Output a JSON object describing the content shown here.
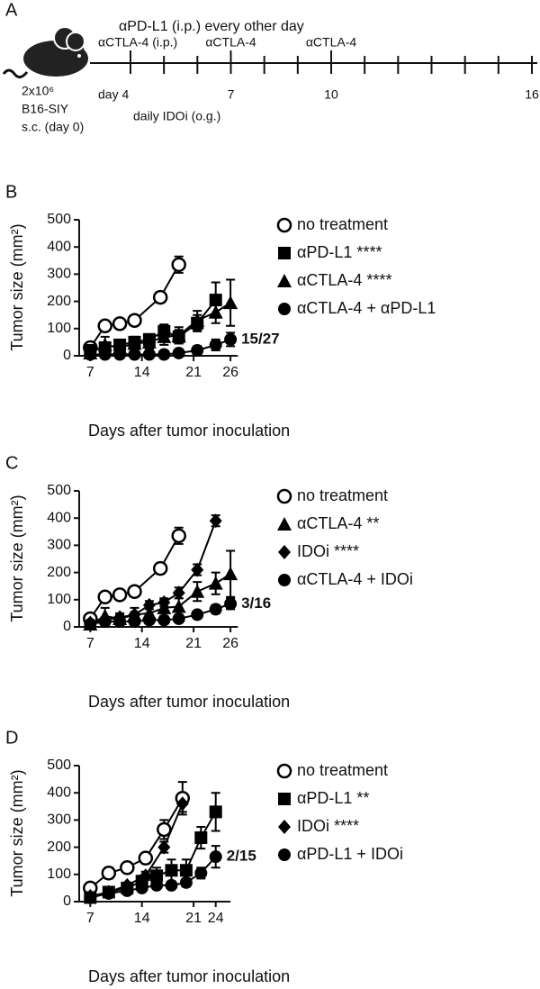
{
  "timeline": {
    "panel": "A",
    "header": "αPD-L1 (i.p.) every other day",
    "inoculation": [
      "2x10⁶",
      "B16-SIY",
      "s.c. (day 0)"
    ],
    "daily": "daily IDOi (o.g.)",
    "xlim": [
      4,
      16
    ],
    "xticks": [
      {
        "value": 4,
        "label": "day 4"
      },
      7,
      10,
      16
    ],
    "minor_ticks": [
      5,
      6,
      8,
      9,
      11,
      12,
      13,
      14,
      15
    ],
    "treatments": [
      {
        "day": 4,
        "label": "αCTLA-4 (i.p.)"
      },
      {
        "day": 7,
        "label": "αCTLA-4"
      },
      {
        "day": 10,
        "label": "αCTLA-4"
      }
    ]
  },
  "chart_data": [
    {
      "type": "line",
      "panel": "B",
      "ylabel": "Tumor size (mm²)",
      "xlabel": "Days after tumor inoculation",
      "xlim": [
        5.5,
        27
      ],
      "xticks": [
        7,
        14,
        21,
        26
      ],
      "ylim": [
        0,
        500
      ],
      "yticks": [
        0,
        100,
        200,
        300,
        400,
        500
      ],
      "annotation": "15/27",
      "series": [
        {
          "name": "no treatment",
          "marker": "circle-open",
          "color": "#000000",
          "x": [
            7,
            9,
            11,
            13,
            16.5,
            19
          ],
          "values": [
            30,
            110,
            118,
            130,
            215,
            335
          ],
          "errors": [
            10,
            10,
            10,
            10,
            20,
            30
          ]
        },
        {
          "name": "αPD-L1 ****",
          "marker": "square",
          "color": "#000000",
          "x": [
            7,
            9,
            11,
            13,
            15,
            17,
            19,
            21.5,
            24
          ],
          "values": [
            20,
            30,
            40,
            50,
            60,
            90,
            70,
            120,
            205
          ],
          "errors": [
            10,
            15,
            15,
            20,
            20,
            25,
            25,
            30,
            65
          ]
        },
        {
          "name": "αCTLA-4 ****",
          "marker": "triangle",
          "color": "#000000",
          "x": [
            7,
            9,
            11,
            13,
            15,
            17,
            19,
            21.5,
            24,
            26
          ],
          "values": [
            10,
            40,
            30,
            45,
            50,
            70,
            75,
            130,
            160,
            195
          ],
          "errors": [
            10,
            30,
            20,
            25,
            25,
            30,
            30,
            35,
            40,
            85
          ]
        },
        {
          "name": "αCTLA-4 + αPD-L1",
          "marker": "circle",
          "color": "#000000",
          "x": [
            7,
            9,
            11,
            13,
            15,
            17,
            19,
            21.5,
            24,
            26
          ],
          "values": [
            5,
            5,
            5,
            5,
            5,
            5,
            10,
            20,
            40,
            60
          ],
          "errors": [
            5,
            5,
            5,
            5,
            5,
            5,
            10,
            15,
            20,
            25
          ]
        }
      ]
    },
    {
      "type": "line",
      "panel": "C",
      "ylabel": "Tumor size (mm²)",
      "xlabel": "Days after tumor inoculation",
      "xlim": [
        5.5,
        27
      ],
      "xticks": [
        7,
        14,
        21,
        26
      ],
      "ylim": [
        0,
        500
      ],
      "yticks": [
        0,
        100,
        200,
        300,
        400,
        500
      ],
      "annotation": "3/16",
      "series": [
        {
          "name": "no treatment",
          "marker": "circle-open",
          "color": "#000000",
          "x": [
            7,
            9,
            11,
            13,
            16.5,
            19
          ],
          "values": [
            30,
            110,
            118,
            130,
            215,
            335
          ],
          "errors": [
            10,
            10,
            10,
            10,
            20,
            30
          ]
        },
        {
          "name": "αCTLA-4 **",
          "marker": "triangle",
          "color": "#000000",
          "x": [
            7,
            9,
            11,
            13,
            15,
            17,
            19,
            21.5,
            24,
            26
          ],
          "values": [
            10,
            40,
            30,
            45,
            50,
            70,
            75,
            130,
            160,
            195
          ],
          "errors": [
            10,
            30,
            20,
            25,
            25,
            30,
            30,
            35,
            40,
            85
          ]
        },
        {
          "name": "IDOi ****",
          "marker": "diamond",
          "color": "#000000",
          "x": [
            7,
            9,
            11,
            13,
            15,
            17,
            19,
            21.5,
            24
          ],
          "values": [
            15,
            25,
            35,
            45,
            80,
            90,
            125,
            210,
            390
          ],
          "errors": [
            5,
            10,
            10,
            10,
            15,
            15,
            20,
            20,
            20
          ]
        },
        {
          "name": "αCTLA-4 + IDOi",
          "marker": "circle",
          "color": "#000000",
          "x": [
            7,
            9,
            11,
            13,
            15,
            17,
            19,
            21.5,
            24,
            26
          ],
          "values": [
            10,
            20,
            20,
            20,
            25,
            25,
            30,
            45,
            65,
            85
          ],
          "errors": [
            10,
            10,
            10,
            10,
            10,
            10,
            10,
            10,
            15,
            20
          ]
        }
      ]
    },
    {
      "type": "line",
      "panel": "D",
      "ylabel": "Tumor size (mm²)",
      "xlabel": "Days after tumor inoculation",
      "xlim": [
        5.5,
        26
      ],
      "xticks": [
        7,
        14,
        21,
        24
      ],
      "ylim": [
        0,
        500
      ],
      "yticks": [
        0,
        100,
        200,
        300,
        400,
        500
      ],
      "annotation": "2/15",
      "series": [
        {
          "name": "no treatment",
          "marker": "circle-open",
          "color": "#000000",
          "x": [
            7,
            9.5,
            12,
            14.5,
            17,
            19.5
          ],
          "values": [
            50,
            105,
            125,
            160,
            265,
            380
          ],
          "errors": [
            10,
            20,
            15,
            20,
            35,
            60
          ]
        },
        {
          "name": "αPD-L1 **",
          "marker": "square",
          "color": "#000000",
          "x": [
            7,
            9.5,
            12,
            14,
            16,
            18,
            20,
            22,
            24
          ],
          "values": [
            15,
            35,
            50,
            75,
            95,
            115,
            115,
            235,
            330
          ],
          "errors": [
            10,
            10,
            15,
            20,
            30,
            40,
            40,
            40,
            70
          ]
        },
        {
          "name": "IDOi ****",
          "marker": "diamond",
          "color": "#000000",
          "x": [
            7,
            9.5,
            12,
            14.5,
            17,
            19.5
          ],
          "values": [
            20,
            35,
            60,
            95,
            200,
            360
          ],
          "errors": [
            5,
            10,
            10,
            15,
            20,
            30
          ]
        },
        {
          "name": "αPD-L1 + IDOi",
          "marker": "circle",
          "color": "#000000",
          "x": [
            7,
            9.5,
            12,
            14,
            16,
            18,
            20,
            22,
            24
          ],
          "values": [
            15,
            30,
            40,
            50,
            60,
            60,
            70,
            105,
            165
          ],
          "errors": [
            5,
            10,
            10,
            10,
            10,
            10,
            15,
            20,
            40
          ]
        }
      ]
    }
  ]
}
